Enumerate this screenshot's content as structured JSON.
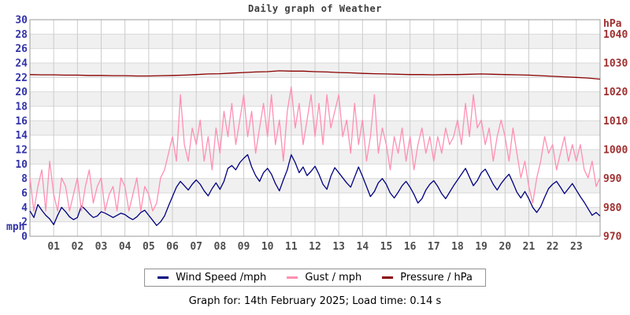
{
  "axes": {
    "left": {
      "unit": "mph",
      "color": "#3333aa",
      "ticks": [
        30,
        28,
        26,
        24,
        22,
        20,
        18,
        16,
        14,
        12,
        10,
        8,
        6,
        4,
        2,
        0
      ]
    },
    "right": {
      "unit": "hPa",
      "color": "#a03030",
      "ticks": [
        970,
        980,
        990,
        1000,
        1010,
        1020,
        1030,
        1040
      ]
    },
    "x": {
      "color": "#4d4d4d",
      "ticks": [
        "01",
        "02",
        "03",
        "04",
        "05",
        "06",
        "07",
        "08",
        "09",
        "10",
        "11",
        "12",
        "13",
        "14",
        "15",
        "16",
        "17",
        "18",
        "19",
        "20",
        "21",
        "22",
        "23"
      ]
    }
  },
  "legend": [
    {
      "label": "Wind Speed /mph",
      "color": "#000080"
    },
    {
      "label": "Gust / mph",
      "color": "#ff8fb1"
    },
    {
      "label": "Pressure / hPa",
      "color": "#8b0000"
    }
  ],
  "footer": {
    "caption": "Graph for: 14th February 2025; Load time: 0.14 s"
  },
  "chart_data": {
    "type": "line",
    "title": "Daily graph of Weather",
    "xlabel": "",
    "ylabel": "mph",
    "y2label": "hPa",
    "x_range_hours": [
      0,
      24
    ],
    "ylim": [
      0,
      30
    ],
    "y2lim": [
      970,
      1045
    ],
    "grid": true,
    "band_colors": [
      "#ffffff",
      "#f0f0f0"
    ],
    "legend_position": "bottom",
    "series": [
      {
        "name": "Wind Speed /mph",
        "axis": "y",
        "color": "#000080",
        "interval_minutes": 10,
        "values": [
          3.5,
          2.6,
          4.4,
          3.6,
          2.9,
          2.4,
          1.6,
          2.9,
          4.0,
          3.4,
          2.7,
          2.3,
          2.6,
          4.2,
          3.7,
          3.1,
          2.6,
          2.8,
          3.4,
          3.2,
          2.9,
          2.6,
          2.9,
          3.2,
          3.0,
          2.6,
          2.3,
          2.7,
          3.3,
          3.6,
          2.9,
          2.2,
          1.5,
          2.0,
          2.8,
          4.2,
          5.5,
          6.8,
          7.6,
          7.0,
          6.4,
          7.2,
          7.8,
          7.2,
          6.3,
          5.6,
          6.6,
          7.4,
          6.5,
          7.6,
          9.4,
          9.8,
          9.2,
          10.2,
          10.8,
          11.3,
          9.6,
          8.4,
          7.6,
          8.8,
          9.4,
          8.6,
          7.3,
          6.3,
          7.8,
          9.2,
          11.3,
          10.2,
          8.8,
          9.6,
          8.4,
          9.0,
          9.7,
          8.6,
          7.2,
          6.5,
          8.3,
          9.5,
          8.8,
          8.1,
          7.4,
          6.8,
          8.2,
          9.6,
          8.3,
          6.9,
          5.5,
          6.2,
          7.4,
          8.0,
          7.2,
          6.0,
          5.3,
          6.1,
          7.0,
          7.6,
          6.8,
          5.8,
          4.6,
          5.2,
          6.4,
          7.2,
          7.7,
          6.9,
          5.9,
          5.2,
          6.1,
          7.0,
          7.8,
          8.6,
          9.4,
          8.2,
          7.0,
          7.7,
          8.8,
          9.3,
          8.3,
          7.2,
          6.4,
          7.3,
          8.0,
          8.6,
          7.4,
          6.1,
          5.3,
          6.2,
          5.2,
          4.0,
          3.3,
          4.1,
          5.4,
          6.6,
          7.2,
          7.6,
          6.8,
          5.9,
          6.6,
          7.3,
          6.4,
          5.5,
          4.7,
          3.8,
          2.9,
          3.3,
          2.8
        ]
      },
      {
        "name": "Gust / mph",
        "axis": "y",
        "color": "#ff8fb1",
        "interval_minutes": 10,
        "values": [
          8.1,
          3.5,
          6.9,
          9.2,
          3.5,
          10.4,
          5.8,
          3.5,
          8.1,
          6.9,
          3.5,
          5.8,
          8.1,
          3.5,
          6.9,
          9.2,
          4.6,
          6.9,
          8.1,
          3.5,
          5.8,
          6.9,
          3.5,
          8.1,
          6.9,
          3.5,
          5.8,
          8.1,
          3.5,
          6.9,
          5.8,
          3.5,
          4.6,
          8.1,
          9.2,
          11.5,
          13.8,
          10.4,
          19.6,
          12.7,
          10.4,
          15.0,
          12.7,
          16.1,
          10.4,
          13.8,
          9.2,
          15.0,
          11.5,
          17.3,
          13.8,
          18.4,
          12.7,
          16.1,
          19.6,
          13.8,
          17.3,
          11.5,
          15.0,
          18.4,
          13.8,
          19.6,
          12.7,
          16.1,
          10.4,
          17.3,
          20.7,
          15.0,
          18.4,
          12.7,
          16.1,
          19.6,
          13.8,
          18.4,
          12.7,
          19.6,
          15.0,
          17.3,
          19.6,
          13.8,
          16.1,
          11.5,
          18.4,
          12.7,
          16.1,
          10.4,
          13.8,
          19.6,
          11.5,
          15.0,
          12.7,
          9.2,
          13.8,
          11.5,
          15.0,
          10.4,
          13.8,
          9.2,
          12.7,
          15.0,
          11.5,
          13.8,
          10.4,
          13.8,
          11.5,
          15.0,
          12.7,
          13.8,
          16.1,
          12.7,
          18.4,
          13.8,
          19.6,
          15.0,
          16.1,
          12.7,
          15.0,
          10.4,
          13.8,
          16.1,
          13.8,
          10.4,
          15.0,
          11.5,
          8.1,
          10.4,
          6.9,
          4.6,
          8.1,
          10.4,
          13.8,
          11.5,
          12.7,
          9.2,
          11.5,
          13.8,
          10.4,
          12.7,
          10.4,
          12.7,
          9.2,
          8.1,
          10.4,
          6.9,
          8.1
        ]
      },
      {
        "name": "Pressure / hPa",
        "axis": "y2",
        "color": "#8b0000",
        "interval_minutes": 30,
        "values": [
          1026.0,
          1025.9,
          1025.9,
          1025.8,
          1025.8,
          1025.7,
          1025.7,
          1025.6,
          1025.6,
          1025.5,
          1025.5,
          1025.6,
          1025.7,
          1025.8,
          1026.0,
          1026.2,
          1026.3,
          1026.5,
          1026.7,
          1026.9,
          1027.0,
          1027.3,
          1027.2,
          1027.2,
          1027.0,
          1026.9,
          1026.7,
          1026.6,
          1026.4,
          1026.3,
          1026.2,
          1026.1,
          1026.0,
          1026.0,
          1025.9,
          1026.0,
          1026.0,
          1026.1,
          1026.2,
          1026.1,
          1026.0,
          1025.9,
          1025.8,
          1025.6,
          1025.4,
          1025.2,
          1025.0,
          1024.8,
          1024.4
        ]
      }
    ]
  }
}
